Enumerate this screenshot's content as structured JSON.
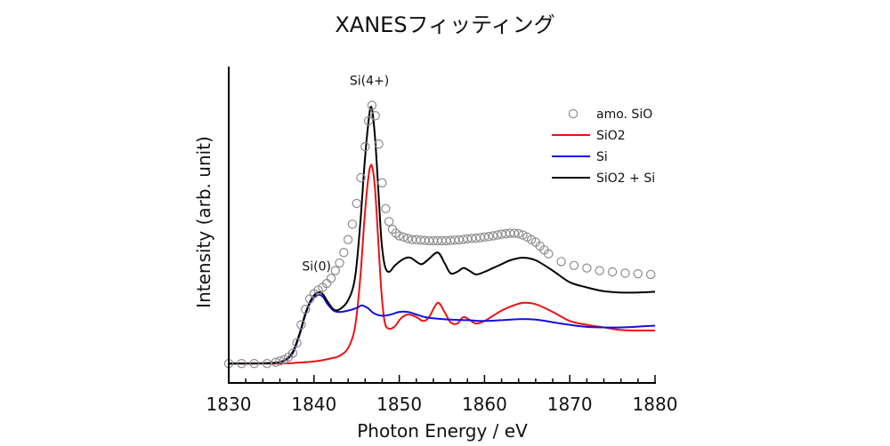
{
  "chart_data": {
    "type": "line",
    "title": "XANESフィッティング",
    "xlabel": "Photon Energy / eV",
    "ylabel": "Intensity (arb. unit)",
    "xlim": [
      1830,
      1880
    ],
    "ylim": [
      -0.075,
      1.15
    ],
    "xticks": [
      1830,
      1840,
      1850,
      1860,
      1870,
      1880
    ],
    "xtick_labels": [
      "1830",
      "1840",
      "1850",
      "1860",
      "1870",
      "1880"
    ],
    "x_minor_step": 2,
    "grid": false,
    "legend_position": "top-right",
    "annotations": [
      {
        "text": "Si(0)",
        "x": 1840.3,
        "y": 0.36
      },
      {
        "text": "Si(4+)",
        "x": 1846.5,
        "y": 1.08
      }
    ],
    "series": [
      {
        "name": "amo. SiO",
        "style": "markers",
        "color": "#8c8c8c",
        "x": [
          1830,
          1831.5,
          1833,
          1834.5,
          1835.5,
          1836,
          1836.5,
          1837,
          1837.5,
          1838,
          1838.5,
          1839,
          1839.5,
          1840,
          1840.5,
          1841,
          1841.5,
          1842,
          1842.5,
          1843,
          1843.5,
          1844,
          1844.5,
          1845,
          1845.5,
          1846,
          1846.4,
          1846.8,
          1847.2,
          1847.6,
          1848,
          1848.4,
          1848.8,
          1849.2,
          1849.6,
          1850,
          1850.5,
          1851,
          1851.5,
          1852,
          1852.5,
          1853,
          1853.5,
          1854,
          1854.5,
          1855,
          1855.5,
          1856,
          1856.5,
          1857,
          1857.5,
          1858,
          1858.5,
          1859,
          1859.5,
          1860,
          1860.5,
          1861,
          1861.5,
          1862,
          1862.5,
          1863,
          1863.5,
          1864,
          1864.5,
          1865,
          1865.5,
          1866,
          1866.5,
          1867,
          1867.5,
          1869,
          1870.5,
          1872,
          1873.5,
          1875,
          1876.5,
          1878,
          1879.5
        ],
        "y": [
          0.0,
          0.0,
          0.0,
          0.0,
          0.005,
          0.01,
          0.015,
          0.025,
          0.04,
          0.08,
          0.15,
          0.21,
          0.25,
          0.27,
          0.285,
          0.295,
          0.31,
          0.33,
          0.36,
          0.39,
          0.43,
          0.48,
          0.54,
          0.62,
          0.72,
          0.84,
          0.94,
          1.0,
          0.96,
          0.85,
          0.7,
          0.6,
          0.55,
          0.52,
          0.505,
          0.495,
          0.49,
          0.485,
          0.48,
          0.48,
          0.478,
          0.477,
          0.476,
          0.476,
          0.476,
          0.476,
          0.476,
          0.477,
          0.478,
          0.479,
          0.481,
          0.483,
          0.485,
          0.486,
          0.488,
          0.49,
          0.492,
          0.495,
          0.498,
          0.501,
          0.503,
          0.505,
          0.505,
          0.503,
          0.498,
          0.49,
          0.48,
          0.47,
          0.455,
          0.44,
          0.425,
          0.395,
          0.38,
          0.37,
          0.36,
          0.355,
          0.35,
          0.348,
          0.345
        ]
      },
      {
        "name": "SiO2",
        "style": "line",
        "color": "#ee1111",
        "x": [
          1830,
          1836,
          1838,
          1840,
          1842,
          1843,
          1844,
          1844.8,
          1845.4,
          1845.9,
          1846.3,
          1846.7,
          1847.1,
          1847.5,
          1847.9,
          1848.3,
          1848.8,
          1849.5,
          1850.2,
          1851,
          1852,
          1852.8,
          1853.5,
          1854.5,
          1855.3,
          1856,
          1856.8,
          1857.5,
          1858.2,
          1859,
          1860,
          1861,
          1862,
          1863,
          1864.5,
          1866,
          1868,
          1870,
          1872,
          1874,
          1876,
          1878,
          1880
        ],
        "y": [
          0.0,
          0.0,
          0.003,
          0.008,
          0.02,
          0.03,
          0.06,
          0.14,
          0.32,
          0.55,
          0.7,
          0.77,
          0.7,
          0.5,
          0.28,
          0.16,
          0.135,
          0.145,
          0.175,
          0.19,
          0.18,
          0.165,
          0.18,
          0.235,
          0.2,
          0.16,
          0.155,
          0.18,
          0.17,
          0.155,
          0.165,
          0.185,
          0.205,
          0.22,
          0.235,
          0.23,
          0.2,
          0.165,
          0.15,
          0.14,
          0.13,
          0.128,
          0.128
        ]
      },
      {
        "name": "Si",
        "style": "line",
        "color": "#1111dd",
        "x": [
          1830,
          1835,
          1836.5,
          1837.5,
          1838.3,
          1839,
          1839.7,
          1840.4,
          1841,
          1841.6,
          1842.3,
          1843,
          1844,
          1845,
          1845.6,
          1846.3,
          1847,
          1848,
          1849,
          1850,
          1851,
          1852,
          1853,
          1854,
          1856,
          1858,
          1860,
          1862,
          1864,
          1866,
          1868,
          1870,
          1872,
          1874,
          1876,
          1878,
          1880
        ],
        "y": [
          0.0,
          0.002,
          0.01,
          0.04,
          0.11,
          0.19,
          0.245,
          0.265,
          0.26,
          0.23,
          0.205,
          0.2,
          0.205,
          0.215,
          0.225,
          0.215,
          0.195,
          0.185,
          0.19,
          0.2,
          0.2,
          0.19,
          0.18,
          0.175,
          0.17,
          0.168,
          0.165,
          0.168,
          0.172,
          0.17,
          0.16,
          0.15,
          0.142,
          0.14,
          0.14,
          0.143,
          0.147
        ]
      },
      {
        "name": "SiO2 + Si",
        "style": "line",
        "color": "#000000",
        "x": [
          1830,
          1835,
          1836.5,
          1837.5,
          1838.3,
          1839,
          1839.7,
          1840.4,
          1841,
          1841.6,
          1842.3,
          1843,
          1844,
          1844.8,
          1845.4,
          1845.9,
          1846.3,
          1846.7,
          1847.1,
          1847.5,
          1847.9,
          1848.3,
          1848.8,
          1849.5,
          1850.5,
          1851.3,
          1852.5,
          1853.3,
          1854.5,
          1855.3,
          1856,
          1856.8,
          1857.5,
          1858.2,
          1859,
          1860,
          1861,
          1862,
          1863,
          1864.5,
          1866,
          1868,
          1870,
          1872,
          1874,
          1876,
          1878,
          1880
        ],
        "y": [
          0.0,
          0.002,
          0.012,
          0.045,
          0.115,
          0.195,
          0.25,
          0.275,
          0.27,
          0.24,
          0.21,
          0.21,
          0.245,
          0.33,
          0.53,
          0.76,
          0.91,
          0.995,
          0.9,
          0.7,
          0.48,
          0.38,
          0.355,
          0.38,
          0.405,
          0.41,
          0.385,
          0.4,
          0.43,
          0.39,
          0.35,
          0.355,
          0.37,
          0.36,
          0.345,
          0.355,
          0.37,
          0.385,
          0.4,
          0.41,
          0.4,
          0.36,
          0.315,
          0.295,
          0.28,
          0.275,
          0.275,
          0.278
        ]
      }
    ]
  }
}
